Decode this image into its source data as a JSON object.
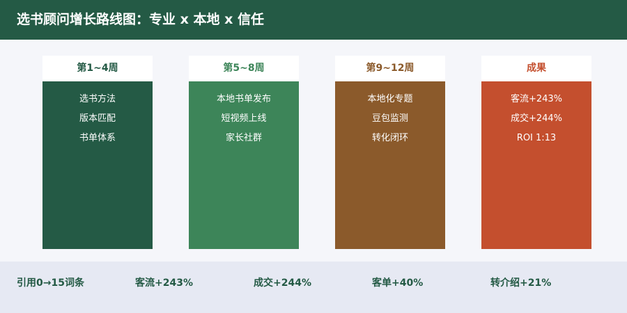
{
  "header": {
    "title": "选书顾问增长路线图：专业 x 本地 x 信任"
  },
  "columns": [
    {
      "label": "第1~4周",
      "label_color": "#245a45",
      "body_color": "#245a45",
      "items": [
        "选书方法",
        "版本匹配",
        "书单体系"
      ]
    },
    {
      "label": "第5~8周",
      "label_color": "#3d8559",
      "body_color": "#3d8559",
      "items": [
        "本地书单发布",
        "短视频上线",
        "家长社群"
      ]
    },
    {
      "label": "第9~12周",
      "label_color": "#8b5a2b",
      "body_color": "#8b5a2b",
      "items": [
        "本地化专题",
        "豆包监测",
        "转化闭环"
      ]
    },
    {
      "label": "成果",
      "label_color": "#c44f2e",
      "body_color": "#c44f2e",
      "items": [
        "客流+243%",
        "成交+244%",
        "ROI 1:13"
      ]
    }
  ],
  "footer": {
    "metrics": [
      "引用0→15词条",
      "客流+243%",
      "成交+244%",
      "客单+40%",
      "转介绍+21%"
    ]
  }
}
